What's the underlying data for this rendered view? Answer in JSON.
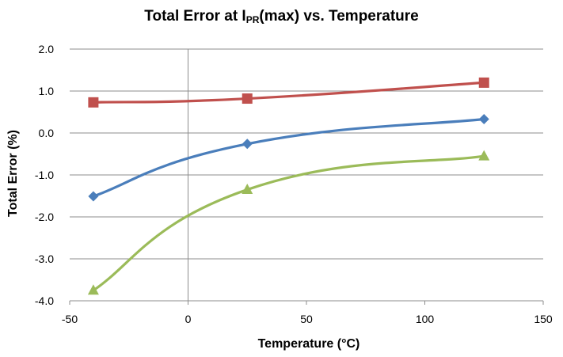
{
  "chart_data": {
    "type": "line",
    "title": {
      "prefix": "Total Error at I",
      "subscript": "PR",
      "suffix": "(max) vs. Temperature"
    },
    "xlabel": "Temperature (°C)",
    "ylabel": "Total Error (%)",
    "xlim": [
      -50,
      150
    ],
    "ylim": [
      -4.0,
      2.0
    ],
    "xticks": [
      -50,
      0,
      50,
      100,
      150
    ],
    "yticks": [
      2.0,
      1.0,
      0.0,
      -1.0,
      -2.0,
      -3.0,
      -4.0
    ],
    "ytick_labels": [
      "2.0",
      "1.0",
      "0.0",
      "-1.0",
      "-2.0",
      "-3.0",
      "-4.0"
    ],
    "grid": "horizontal",
    "legend": "none",
    "series": [
      {
        "marker": "square",
        "color": "#c0504d",
        "x": [
          -40,
          25,
          125
        ],
        "values": [
          0.73,
          0.82,
          1.2
        ]
      },
      {
        "marker": "diamond",
        "color": "#4a7ebb",
        "x": [
          -40,
          25,
          125
        ],
        "values": [
          -1.51,
          -0.26,
          0.33
        ]
      },
      {
        "marker": "triangle",
        "color": "#9bbb59",
        "x": [
          -40,
          25,
          125
        ],
        "values": [
          -3.75,
          -1.35,
          -0.55
        ]
      }
    ]
  }
}
